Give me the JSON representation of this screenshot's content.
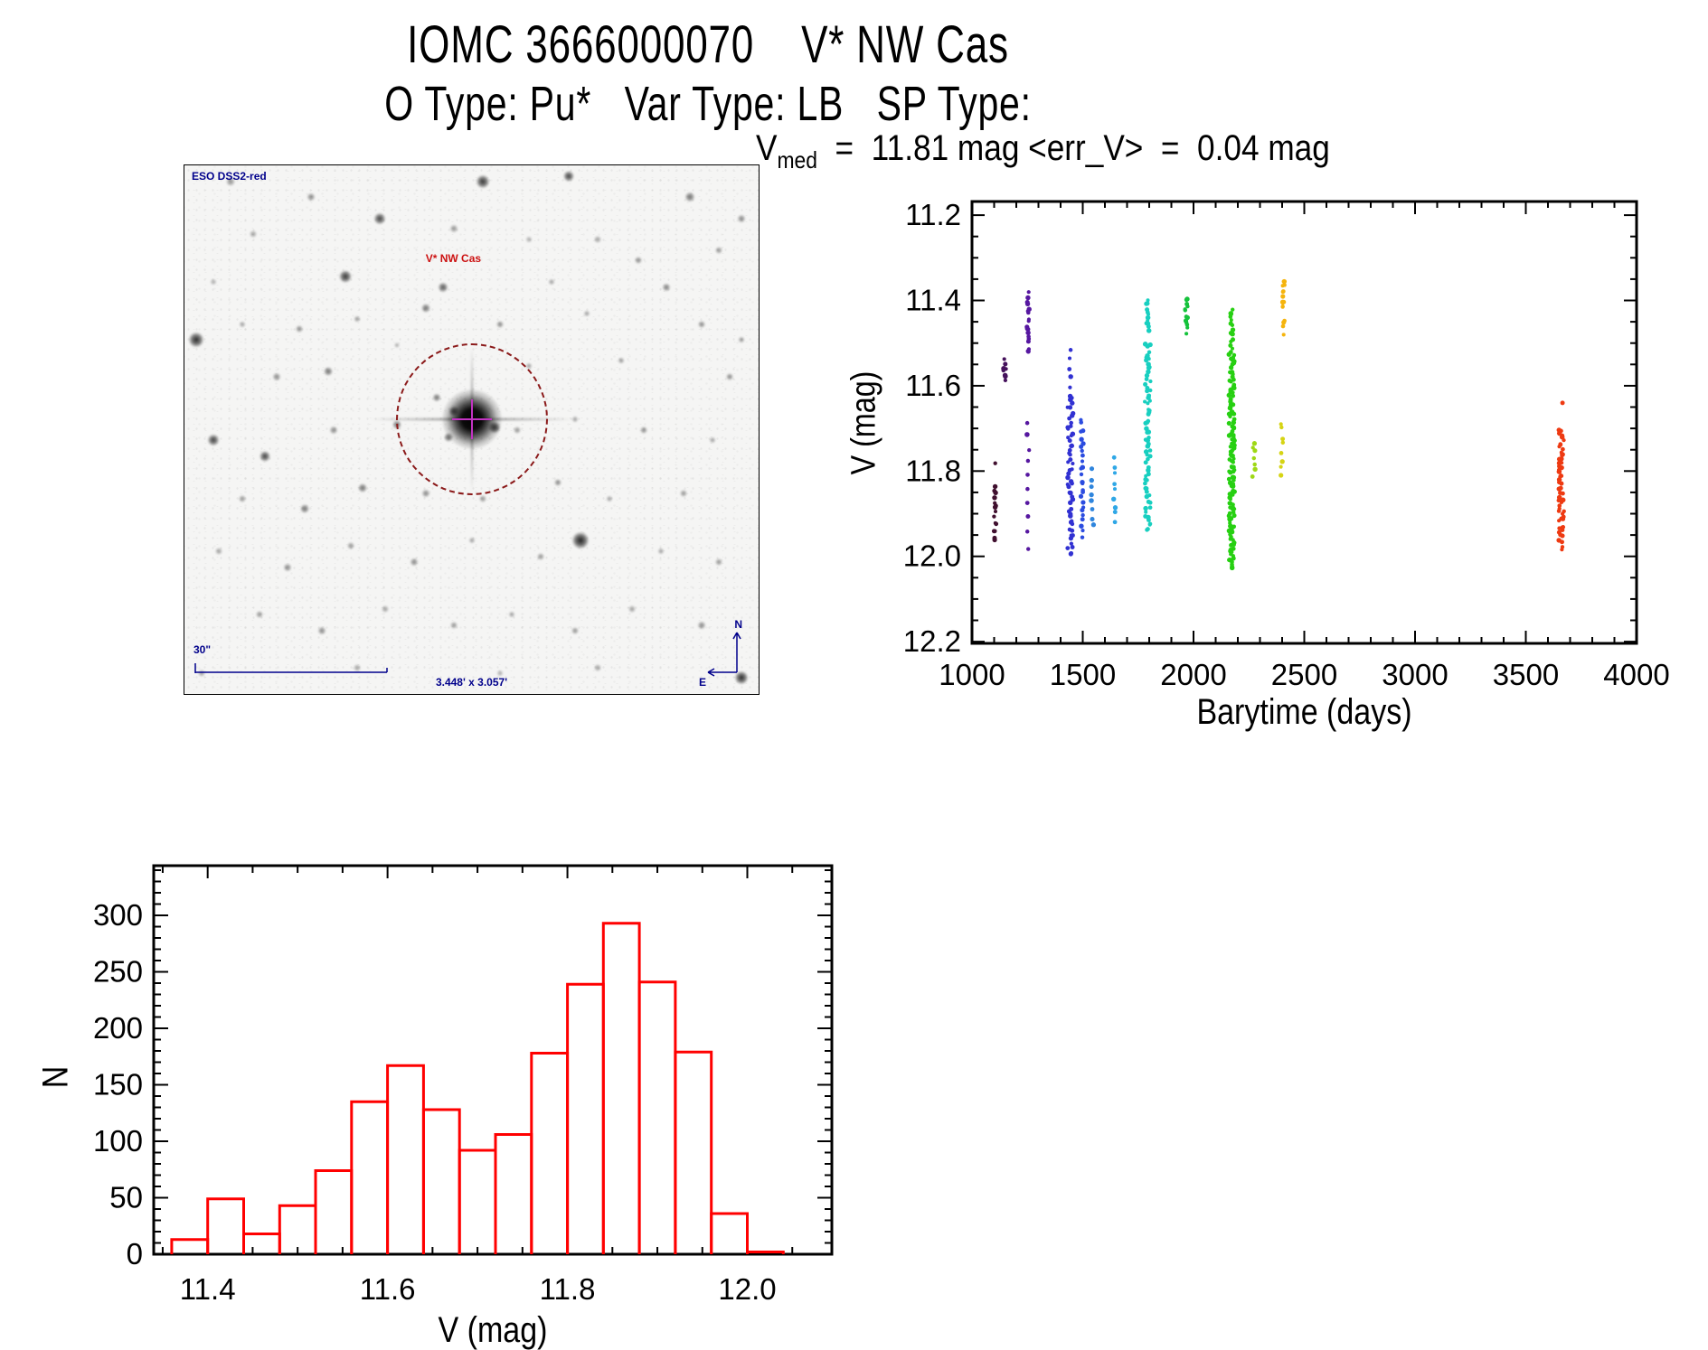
{
  "titles": {
    "line1": "IOMC 3666000070    V* NW Cas",
    "line2": "O Type: Pu*   Var Type: LB   SP Type:"
  },
  "star_field": {
    "survey_label": "ESO DSS2-red",
    "target_label": "V* NW Cas",
    "scale_label": "30\"",
    "size_label": "3.448' x 3.057'",
    "compass": {
      "north": "N",
      "east": "E"
    },
    "label_color": "#00008b",
    "target_label_color": "#cc1111",
    "circle_color": "#8b1a1a",
    "crosshair_color": "#c233c2",
    "stars": [
      [
        8,
        3,
        10,
        0.45
      ],
      [
        22,
        6,
        9,
        0.5
      ],
      [
        34,
        10,
        13,
        0.8
      ],
      [
        52,
        3,
        15,
        0.85
      ],
      [
        67,
        2,
        12,
        0.8
      ],
      [
        88,
        6,
        11,
        0.6
      ],
      [
        97,
        10,
        9,
        0.5
      ],
      [
        47,
        12,
        9,
        0.45
      ],
      [
        60,
        14,
        7,
        0.35
      ],
      [
        72,
        14,
        8,
        0.4
      ],
      [
        93,
        16,
        8,
        0.45
      ],
      [
        12,
        13,
        8,
        0.4
      ],
      [
        28,
        21,
        14,
        0.85
      ],
      [
        45,
        23,
        11,
        0.7
      ],
      [
        42,
        27,
        10,
        0.6
      ],
      [
        64,
        22,
        7,
        0.4
      ],
      [
        79,
        18,
        8,
        0.5
      ],
      [
        84,
        23,
        9,
        0.55
      ],
      [
        5,
        22,
        7,
        0.35
      ],
      [
        2,
        33,
        17,
        0.9
      ],
      [
        10,
        30,
        7,
        0.4
      ],
      [
        20,
        31,
        8,
        0.5
      ],
      [
        30,
        29,
        7,
        0.45
      ],
      [
        55,
        30,
        8,
        0.5
      ],
      [
        70,
        28,
        7,
        0.4
      ],
      [
        90,
        30,
        8,
        0.5
      ],
      [
        97,
        33,
        7,
        0.45
      ],
      [
        16,
        40,
        9,
        0.5
      ],
      [
        25,
        39,
        10,
        0.6
      ],
      [
        60,
        38,
        7,
        0.4
      ],
      [
        76,
        37,
        7,
        0.45
      ],
      [
        95,
        40,
        8,
        0.5
      ],
      [
        37,
        34,
        6,
        0.35
      ],
      [
        44,
        44,
        9,
        0.6
      ],
      [
        47,
        46.5,
        11,
        0.75
      ],
      [
        54,
        49.5,
        13,
        0.85
      ],
      [
        46,
        51.5,
        10,
        0.65
      ],
      [
        5,
        52,
        13,
        0.8
      ],
      [
        14,
        55,
        12,
        0.8
      ],
      [
        26,
        50,
        9,
        0.5
      ],
      [
        37,
        49,
        10,
        0.6
      ],
      [
        58,
        50,
        8,
        0.45
      ],
      [
        68,
        48,
        7,
        0.4
      ],
      [
        80,
        50,
        8,
        0.5
      ],
      [
        92,
        52,
        7,
        0.4
      ],
      [
        10,
        63,
        8,
        0.45
      ],
      [
        21,
        65,
        10,
        0.6
      ],
      [
        31,
        61,
        10,
        0.6
      ],
      [
        42,
        62,
        9,
        0.5
      ],
      [
        52,
        63,
        8,
        0.45
      ],
      [
        65,
        60,
        8,
        0.5
      ],
      [
        74,
        63,
        7,
        0.4
      ],
      [
        87,
        62,
        8,
        0.45
      ],
      [
        6,
        73,
        8,
        0.4
      ],
      [
        18,
        76,
        9,
        0.5
      ],
      [
        29,
        72,
        8,
        0.45
      ],
      [
        40,
        75,
        9,
        0.5
      ],
      [
        50,
        71,
        7,
        0.4
      ],
      [
        62,
        74,
        8,
        0.45
      ],
      [
        69,
        71,
        19,
        0.95
      ],
      [
        83,
        73,
        7,
        0.4
      ],
      [
        93,
        75,
        8,
        0.45
      ],
      [
        13,
        85,
        8,
        0.45
      ],
      [
        24,
        88,
        9,
        0.5
      ],
      [
        35,
        84,
        8,
        0.4
      ],
      [
        47,
        87,
        8,
        0.45
      ],
      [
        57,
        85,
        7,
        0.4
      ],
      [
        68,
        88,
        8,
        0.45
      ],
      [
        78,
        84,
        8,
        0.4
      ],
      [
        90,
        87,
        9,
        0.5
      ],
      [
        30,
        95,
        8,
        0.4
      ],
      [
        55,
        96,
        7,
        0.35
      ],
      [
        72,
        95,
        8,
        0.4
      ],
      [
        97,
        97,
        15,
        0.9
      ],
      [
        3,
        96,
        8,
        0.4
      ]
    ]
  },
  "chart_data": [
    {
      "type": "scatter",
      "title": {
        "base": "V",
        "sub": "med",
        "rest": "  =  11.81 mag <err_V>  =  0.04 mag"
      },
      "xlabel": "Barytime (days)",
      "ylabel": "V (mag)",
      "xlim": [
        1000,
        4000
      ],
      "y_top": 11.168,
      "y_bottom": 12.204,
      "y_increases_downward": true,
      "x_ticks": [
        1000,
        1500,
        2000,
        2500,
        3000,
        3500,
        4000
      ],
      "y_ticks": [
        11.2,
        11.4,
        11.6,
        11.8,
        12.0,
        12.2
      ],
      "x_minor_step": 100,
      "y_minor_step": 0.05,
      "grid": false,
      "clusters": [
        {
          "day": 1105,
          "color": "#40102f",
          "segments": [
            [
              11.835,
              11.965,
              15
            ],
            [
              11.77,
              11.785,
              1
            ]
          ]
        },
        {
          "day": 1148,
          "color": "#45125c",
          "segments": [
            [
              11.54,
              11.59,
              8
            ]
          ]
        },
        {
          "day": 1252,
          "color": "#5617a0",
          "segments": [
            [
              11.38,
              11.525,
              20
            ],
            [
              11.69,
              11.87,
              7
            ],
            [
              11.905,
              11.985,
              3
            ]
          ]
        },
        {
          "day": 1443,
          "color": "#3131d2",
          "segments": [
            [
              11.52,
              11.62,
              6
            ],
            [
              11.62,
              11.995,
              55
            ]
          ]
        },
        {
          "day": 1497,
          "color": "#2b4ce0",
          "segments": [
            [
              11.68,
              11.95,
              26
            ]
          ]
        },
        {
          "day": 1543,
          "color": "#2f85dd",
          "segments": [
            [
              11.8,
              11.93,
              8
            ]
          ]
        },
        {
          "day": 1645,
          "color": "#2fa7e6",
          "segments": [
            [
              11.77,
              11.92,
              9
            ]
          ]
        },
        {
          "day": 1793,
          "color": "#18cfc0",
          "segments": [
            [
              11.4,
              11.465,
              13
            ],
            [
              11.5,
              11.94,
              70
            ]
          ]
        },
        {
          "day": 1967,
          "color": "#15c23b",
          "segments": [
            [
              11.395,
              11.475,
              13
            ]
          ]
        },
        {
          "day": 2172,
          "color": "#27d012",
          "segments": [
            [
              11.42,
              11.53,
              18
            ],
            [
              11.53,
              12.02,
              135
            ],
            [
              12.015,
              12.03,
              2
            ]
          ]
        },
        {
          "day": 2272,
          "color": "#9ed815",
          "segments": [
            [
              11.73,
              11.81,
              7
            ]
          ]
        },
        {
          "day": 2398,
          "color": "#d6d414",
          "segments": [
            [
              11.685,
              11.81,
              8
            ]
          ]
        },
        {
          "day": 2408,
          "color": "#f5b40d",
          "segments": [
            [
              11.355,
              11.42,
              10
            ],
            [
              11.445,
              11.475,
              4
            ]
          ]
        },
        {
          "day": 3660,
          "color": "#ee3a12",
          "segments": [
            [
              11.64,
              11.65,
              1
            ],
            [
              11.7,
              11.96,
              55
            ],
            [
              11.965,
              11.99,
              3
            ]
          ]
        }
      ]
    },
    {
      "type": "bar",
      "subtype": "histogram-outline",
      "xlabel": "V (mag)",
      "ylabel": "N",
      "color": "#ff0000",
      "bin_start": 11.36,
      "bin_width": 0.04,
      "values": [
        13,
        49,
        18,
        43,
        74,
        135,
        167,
        128,
        92,
        106,
        178,
        239,
        293,
        241,
        179,
        36,
        2
      ],
      "x_ticks": [
        11.4,
        11.6,
        11.8,
        12.0
      ],
      "y_ticks": [
        0,
        50,
        100,
        150,
        200,
        250,
        300
      ],
      "x_minor_step": 0.05,
      "y_minor_step": 10,
      "xlim": [
        11.34,
        12.094
      ],
      "ylim": [
        0,
        344
      ],
      "grid": false
    }
  ]
}
